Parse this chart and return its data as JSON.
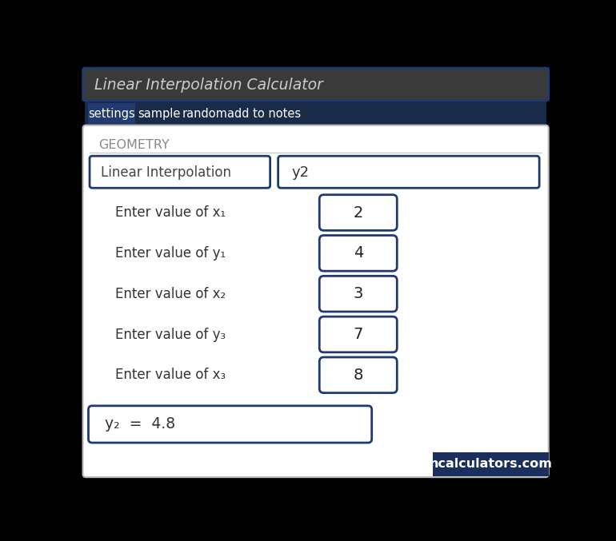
{
  "title": "Linear Interpolation Calculator",
  "tab_items": [
    "settings",
    "sample",
    "random",
    "add to notes"
  ],
  "section_label": "GEOMETRY",
  "dropdown_left": "Linear Interpolation",
  "dropdown_right": "y2",
  "fields": [
    {
      "label": "Enter value of x₁",
      "value": "2"
    },
    {
      "label": "Enter value of y₁",
      "value": "4"
    },
    {
      "label": "Enter value of x₂",
      "value": "3"
    },
    {
      "label": "Enter value of y₃",
      "value": "7"
    },
    {
      "label": "Enter value of x₃",
      "value": "8"
    }
  ],
  "result": "y₂  =  4.8",
  "watermark": "ncalculators.com",
  "bg_color": "#ffffff",
  "dark_navy": "#1a2f5e",
  "navy": "#1e3a6e",
  "tab_bg": "#1a2b4a",
  "border_color": "#1e3a6e",
  "geometry_text_color": "#888888",
  "field_label_color": "#333333",
  "value_color": "#222222"
}
